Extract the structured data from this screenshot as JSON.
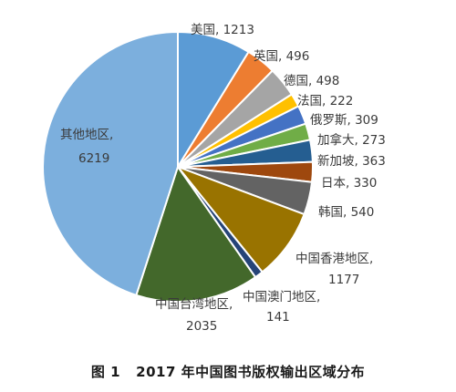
{
  "caption": "图 1   2017 年中国图书版权输出区域分布",
  "chart_data": {
    "type": "pie",
    "title": "",
    "legend": "none",
    "slices": [
      {
        "label": "美国",
        "value": 1213,
        "color": "#5b9bd5",
        "text": "美国, 1213"
      },
      {
        "label": "英国",
        "value": 496,
        "color": "#ed7d31",
        "text": "英国, 496"
      },
      {
        "label": "德国",
        "value": 498,
        "color": "#a5a5a5",
        "text": "德国, 498"
      },
      {
        "label": "法国",
        "value": 222,
        "color": "#ffc000",
        "text": "法国, 222"
      },
      {
        "label": "俄罗斯",
        "value": 309,
        "color": "#4472c4",
        "text": "俄罗斯, 309"
      },
      {
        "label": "加拿大",
        "value": 273,
        "color": "#70ad47",
        "text": "加拿大, 273"
      },
      {
        "label": "新加坡",
        "value": 363,
        "color": "#255e91",
        "text": "新加坡, 363"
      },
      {
        "label": "日本",
        "value": 330,
        "color": "#9e480e",
        "text": "日本, 330"
      },
      {
        "label": "韩国",
        "value": 540,
        "color": "#636363",
        "text": "韩国, 540"
      },
      {
        "label": "中国香港地区",
        "value": 1177,
        "color": "#997300",
        "text": "中国香港地区, 1177"
      },
      {
        "label": "中国澳门地区",
        "value": 141,
        "color": "#264478",
        "text": "中国澳门地区, 141"
      },
      {
        "label": "中国台湾地区",
        "value": 2035,
        "color": "#43682b",
        "text": "中国台湾地区, 2035"
      },
      {
        "label": "其他地区",
        "value": 6219,
        "color": "#7cafdd",
        "text": "其他地区, 6219"
      }
    ]
  }
}
